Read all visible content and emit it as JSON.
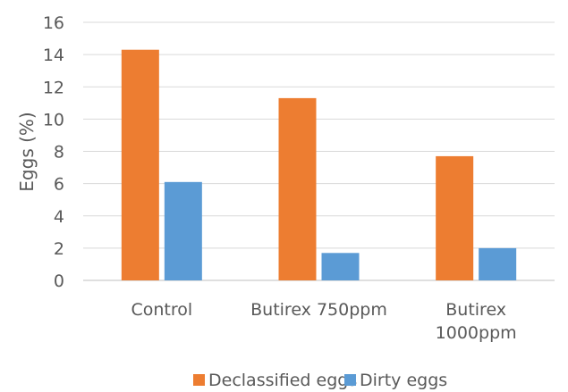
{
  "chart_data": {
    "type": "bar",
    "title": "",
    "xlabel": "",
    "ylabel": "Eggs (%)",
    "ylim": [
      0,
      16
    ],
    "yticks": [
      0,
      2,
      4,
      6,
      8,
      10,
      12,
      14,
      16
    ],
    "grid": true,
    "legend_position": "bottom",
    "categories": [
      [
        "Control"
      ],
      [
        "Butirex 750ppm"
      ],
      [
        "Butirex",
        "1000ppm"
      ]
    ],
    "series": [
      {
        "name": "Declassified eggs",
        "color": "#ED7D31",
        "values": [
          14.3,
          11.3,
          7.7
        ]
      },
      {
        "name": "Dirty eggs",
        "color": "#5B9BD5",
        "values": [
          6.1,
          1.7,
          2.0
        ]
      }
    ]
  }
}
